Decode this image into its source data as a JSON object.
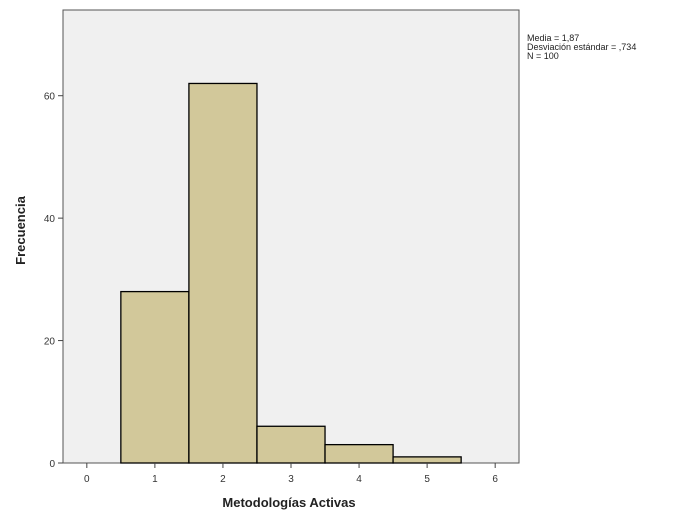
{
  "chart_data": {
    "type": "bar",
    "title": "",
    "xlabel": "Metodologías Activas",
    "ylabel": "Frecuencia",
    "x_ticks": [
      "0",
      "1",
      "2",
      "3",
      "4",
      "5",
      "6"
    ],
    "y_ticks": [
      "0",
      "20",
      "40",
      "60"
    ],
    "xlim": [
      -0.35,
      6.35
    ],
    "ylim": [
      0,
      74
    ],
    "bins": [
      {
        "from": 0.5,
        "to": 1.5,
        "value": 28
      },
      {
        "from": 1.5,
        "to": 2.5,
        "value": 62
      },
      {
        "from": 2.5,
        "to": 3.5,
        "value": 6
      },
      {
        "from": 3.5,
        "to": 4.5,
        "value": 3
      },
      {
        "from": 4.5,
        "to": 5.5,
        "value": 1
      }
    ],
    "grid": false,
    "colors": {
      "bar_fill": "#d2c89a",
      "bar_stroke": "#000000",
      "plot_background": "#f0f0f0"
    }
  },
  "stats": {
    "mean": "Media = 1,87",
    "std": "Desviación estándar = ,734",
    "n": "N = 100"
  }
}
